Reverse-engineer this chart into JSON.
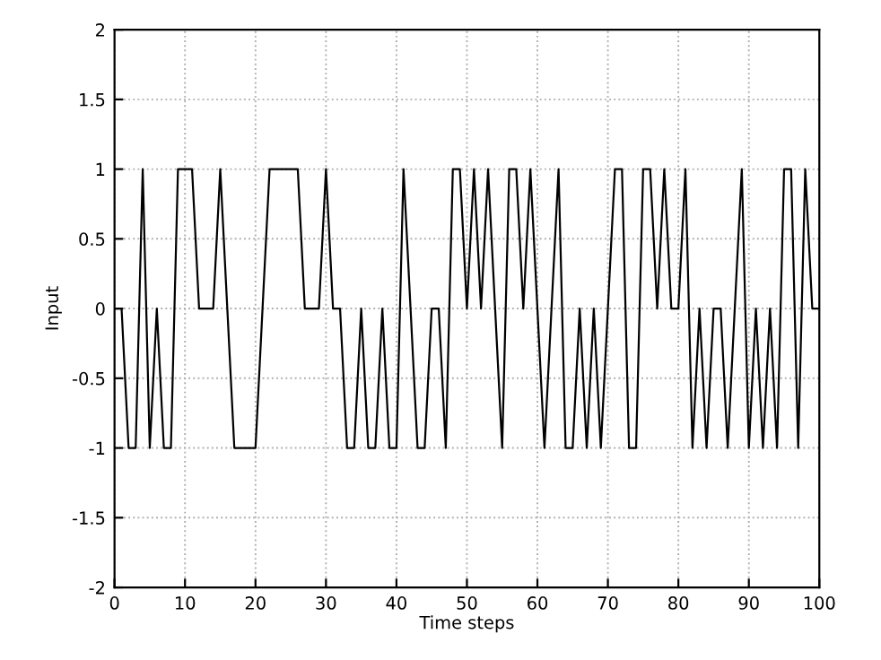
{
  "chart_data": {
    "type": "line",
    "xlabel": "Time steps",
    "ylabel": "Input",
    "x": [
      0,
      1,
      2,
      3,
      4,
      5,
      6,
      7,
      8,
      9,
      10,
      11,
      12,
      13,
      14,
      15,
      16,
      17,
      18,
      19,
      20,
      21,
      22,
      23,
      24,
      25,
      26,
      27,
      28,
      29,
      30,
      31,
      32,
      33,
      34,
      35,
      36,
      37,
      38,
      39,
      40,
      41,
      42,
      43,
      44,
      45,
      46,
      47,
      48,
      49,
      50,
      51,
      52,
      53,
      54,
      55,
      56,
      57,
      58,
      59,
      60,
      61,
      62,
      63,
      64,
      65,
      66,
      67,
      68,
      69,
      70,
      71,
      72,
      73,
      74,
      75,
      76,
      77,
      78,
      79,
      80,
      81,
      82,
      83,
      84,
      85,
      86,
      87,
      88,
      89,
      90,
      91,
      92,
      93,
      94,
      95,
      96,
      97,
      98,
      99,
      100
    ],
    "series": [
      {
        "color": "#000000",
        "values": [
          0,
          0,
          -1,
          -1,
          1,
          -1,
          0,
          -1,
          -1,
          1,
          1,
          1,
          0,
          0,
          0,
          1,
          0,
          -1,
          -1,
          -1,
          -1,
          0,
          1,
          1,
          1,
          1,
          1,
          0,
          0,
          0,
          1,
          0,
          0,
          -1,
          -1,
          0,
          -1,
          -1,
          0,
          -1,
          -1,
          1,
          0,
          -1,
          -1,
          0,
          0,
          -1,
          1,
          1,
          0,
          1,
          0,
          1,
          0,
          -1,
          1,
          1,
          0,
          1,
          0,
          -1,
          0,
          1,
          -1,
          -1,
          0,
          -1,
          0,
          -1,
          0,
          1,
          1,
          -1,
          -1,
          1,
          1,
          0,
          1,
          0,
          0,
          1,
          -1,
          0,
          -1,
          0,
          0,
          -1,
          0,
          1,
          -1,
          0,
          -1,
          0,
          -1,
          1,
          1,
          -1,
          1,
          0,
          0
        ]
      }
    ],
    "xlim": [
      0,
      100
    ],
    "ylim": [
      -2,
      2
    ],
    "xticks": [
      0,
      10,
      20,
      30,
      40,
      50,
      60,
      70,
      80,
      90,
      100
    ],
    "yticks": [
      -2,
      -1.5,
      -1,
      -0.5,
      0,
      0.5,
      1,
      1.5,
      2
    ],
    "grid": true,
    "line_style": "solid",
    "marker": "none"
  }
}
